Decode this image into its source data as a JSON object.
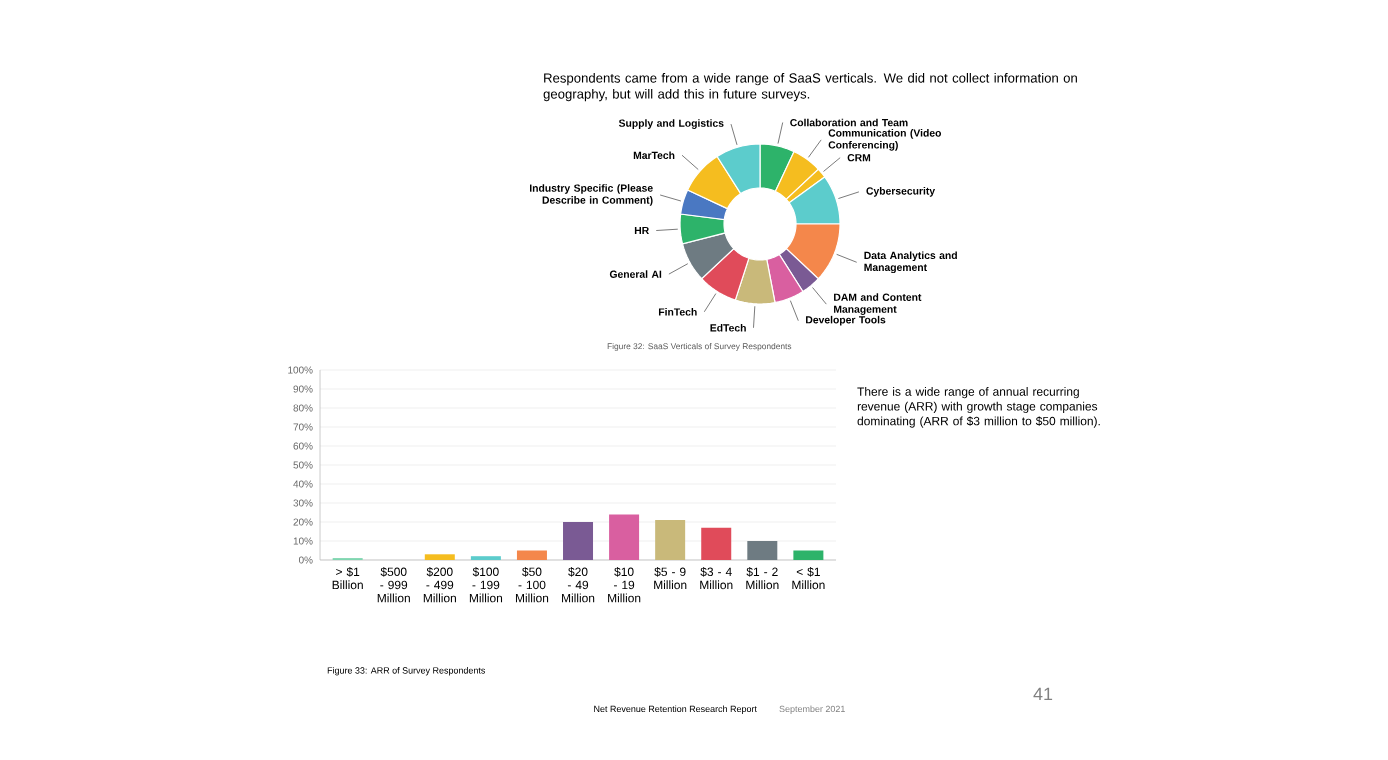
{
  "chart_data": [
    {
      "type": "donut",
      "title": "Figure 32: SaaS Verticals of Survey Respondents",
      "subtitle": "Respondents came from a wide range of SaaS verticals. We did not collect information on geography, but will add this in future surveys.",
      "categories": [
        "Collaboration and Team",
        "Communication (Video Conferencing)",
        "CRM",
        "Cybersecurity",
        "Data Analytics and Management",
        "DAM and Content Management",
        "Developer Tools",
        "EdTech",
        "FinTech",
        "General AI",
        "HR",
        "Industry Specific (Please Describe in Comment)",
        "MarTech",
        "Supply and Logistics"
      ],
      "values": [
        7,
        6,
        2,
        10,
        12,
        4,
        6,
        8,
        8,
        8,
        6,
        5,
        9,
        9
      ],
      "colors": [
        "#2db36a",
        "#f5bd1f",
        "#f5bd1f",
        "#5ccccc",
        "#f4874b",
        "#7a5a94",
        "#d95fa0",
        "#c9b97a",
        "#e04b5a",
        "#6e7b82",
        "#2db36a",
        "#4a78c2",
        "#f5bd1f",
        "#5ccccc"
      ]
    },
    {
      "type": "bar",
      "title": "Figure 33: ARR of Survey Respondents",
      "categories": [
        "> $1 Billion",
        "$500 - 999 Million",
        "$200 - 499 Million",
        "$100 - 199 Million",
        "$50 - 100 Million",
        "$20 - 49 Million",
        "$10 - 19 Million",
        "$5 - 9 Million",
        "$3 - 4 Million",
        "$1 - 2 Million",
        "< $1 Million"
      ],
      "values": [
        1,
        0,
        3,
        2,
        5,
        20,
        24,
        21,
        17,
        10,
        5
      ],
      "colors": [
        "#7fd6b0",
        "#cfcfcf",
        "#f5bd1f",
        "#5ccccc",
        "#f4874b",
        "#7a5a94",
        "#d95fa0",
        "#c9b97a",
        "#e04b5a",
        "#6e7b82",
        "#2db36a"
      ],
      "ylim": [
        0,
        100
      ],
      "yticks": [
        {
          "value": 0,
          "label": "0%"
        },
        {
          "value": 10,
          "label": "10%"
        },
        {
          "value": 20,
          "label": "20%"
        },
        {
          "value": 30,
          "label": "30%"
        },
        {
          "value": 40,
          "label": "40%"
        },
        {
          "value": 50,
          "label": "50%"
        },
        {
          "value": 60,
          "label": "60%"
        },
        {
          "value": 70,
          "label": "70%"
        },
        {
          "value": 80,
          "label": "80%"
        },
        {
          "value": 90,
          "label": "90%"
        },
        {
          "value": 100,
          "label": "100%"
        }
      ],
      "grid": "y",
      "annotations": [
        "There is a wide range of annual recurring revenue (ARR) with growth stage companies dominating (ARR of $3 million to $50 million).",
        "Net Revenue Retention Research Report",
        "September 2021",
        "41"
      ]
    }
  ]
}
